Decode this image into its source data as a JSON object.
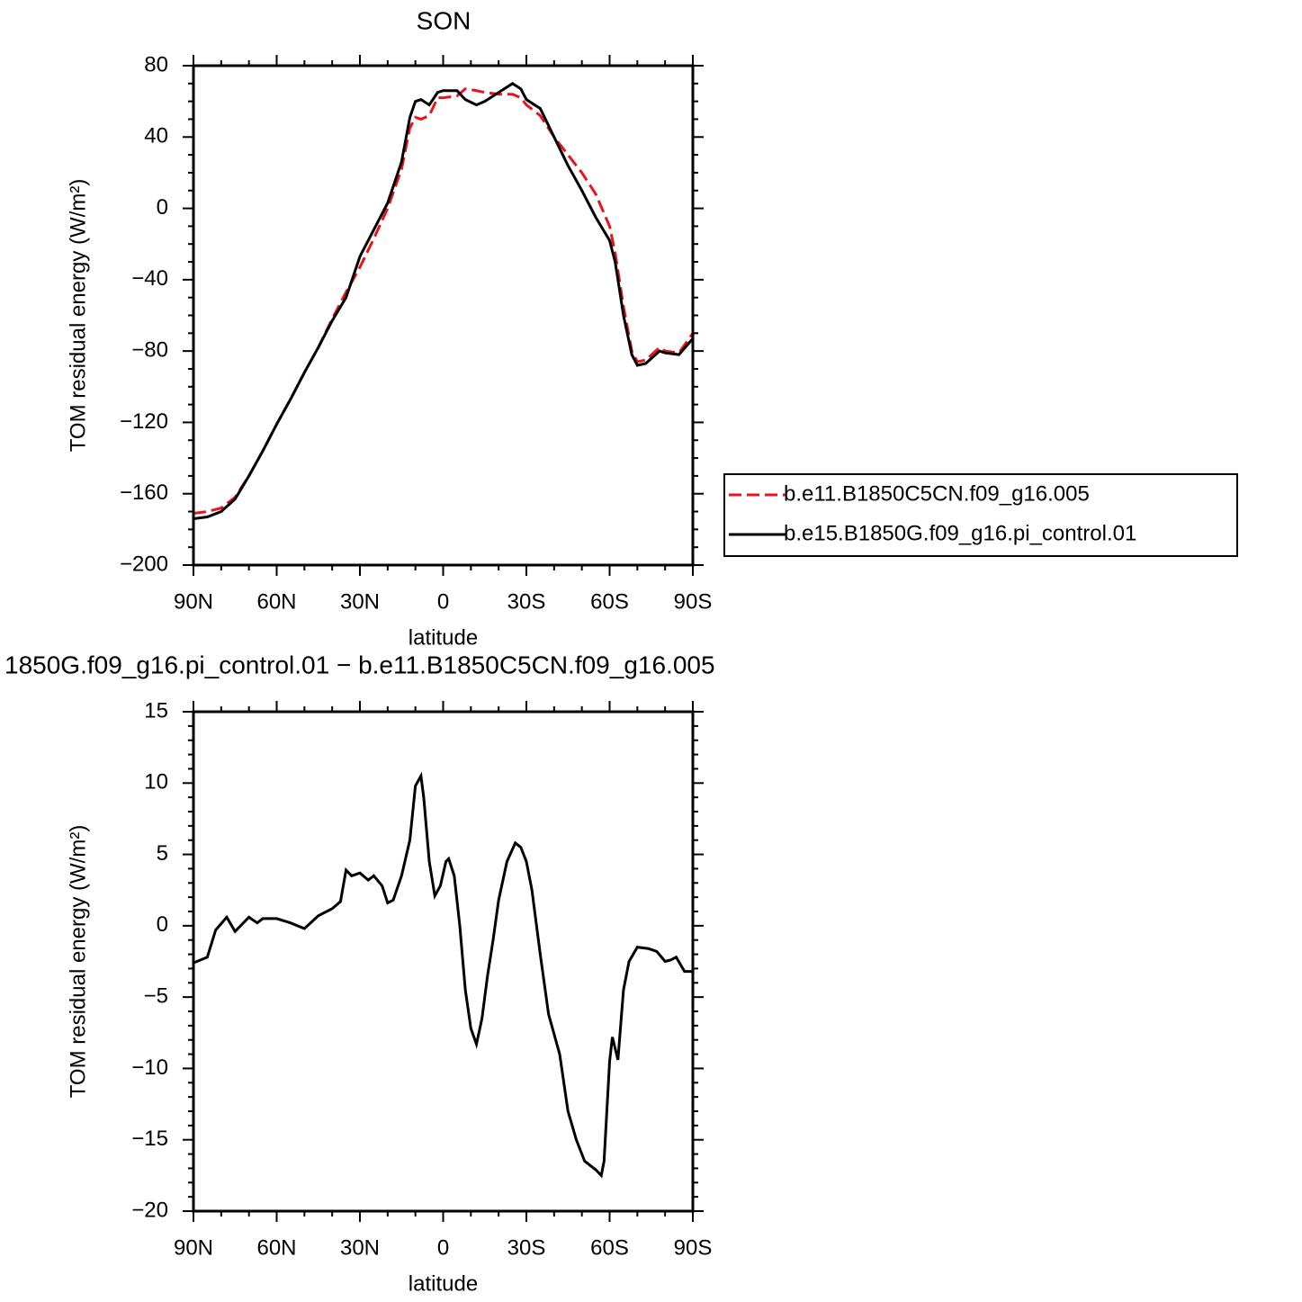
{
  "chart_data": [
    {
      "type": "line",
      "title": "SON",
      "x_label": "latitude",
      "y_label": "TOM residual energy (W/m²)",
      "x": [
        90,
        85,
        80,
        75,
        70,
        65,
        60,
        55,
        50,
        45,
        40,
        35,
        30,
        25,
        20,
        15,
        12,
        10,
        8,
        5,
        2,
        0,
        -5,
        -8,
        -12,
        -15,
        -20,
        -25,
        -28,
        -30,
        -35,
        -40,
        -45,
        -50,
        -55,
        -60,
        -62,
        -65,
        -68,
        -70,
        -73,
        -78,
        -80,
        -85,
        -90
      ],
      "xlim": [
        90,
        -90
      ],
      "xticks": [
        {
          "value": 90,
          "label": "90N"
        },
        {
          "value": 60,
          "label": "60N"
        },
        {
          "value": 30,
          "label": "30N"
        },
        0,
        {
          "value": -30,
          "label": "30S"
        },
        {
          "value": -60,
          "label": "60S"
        },
        {
          "value": -90,
          "label": "90S"
        }
      ],
      "xminorticks": [
        80,
        70,
        50,
        40,
        20,
        10,
        -10,
        -20,
        -40,
        -50,
        -70,
        -80
      ],
      "ylim": [
        -200,
        80
      ],
      "yticks": [
        {
          "value": -200,
          "label": "−200"
        },
        {
          "value": -160,
          "label": "−160"
        },
        {
          "value": -120,
          "label": "−120"
        },
        {
          "value": -80,
          "label": "−80"
        },
        {
          "value": -40,
          "label": "−40"
        },
        0,
        40,
        80
      ],
      "yminorticks": [
        -190,
        -180,
        -170,
        -150,
        -140,
        -130,
        -110,
        -100,
        -90,
        -70,
        -60,
        -50,
        -30,
        -20,
        -10,
        10,
        20,
        30,
        50,
        60,
        70
      ],
      "legend": "outside-right",
      "series": [
        {
          "name": "b.e11.B1850C5CN.f09_g16.005",
          "color": "#e8141c",
          "style": "dashed",
          "values": [
            -171,
            -170,
            -168,
            -162,
            -150,
            -136,
            -121,
            -107,
            -92,
            -78,
            -62,
            -47,
            -33,
            -17,
            0,
            22,
            45,
            51,
            50,
            52,
            62,
            62,
            63,
            67,
            66,
            65,
            64,
            64,
            62,
            58,
            52,
            40,
            30,
            20,
            8,
            -10,
            -25,
            -55,
            -80,
            -86,
            -85,
            -78,
            -80,
            -81,
            -70
          ]
        },
        {
          "name": "b.e15.B1850G.f09_g16.pi_control.01",
          "color": "#000000",
          "style": "solid",
          "values": [
            -174,
            -173,
            -170,
            -163,
            -150,
            -136,
            -121,
            -107,
            -92,
            -78,
            -63,
            -50,
            -27,
            -12,
            3,
            26,
            51,
            60,
            61,
            58,
            65,
            66,
            66,
            61,
            58,
            60,
            65,
            70,
            67,
            61,
            56,
            40,
            24,
            10,
            -5,
            -18,
            -30,
            -60,
            -82,
            -88,
            -87,
            -80,
            -81,
            -82,
            -73
          ]
        }
      ]
    },
    {
      "type": "line",
      "title": "1850G.f09_g16.pi_control.01 − b.e11.B1850C5CN.f09_g16.005",
      "x_label": "latitude",
      "y_label": "TOM residual energy (W/m²)",
      "x": [
        90,
        85,
        82,
        78,
        75,
        70,
        67,
        65,
        60,
        55,
        50,
        45,
        40,
        37,
        35,
        33,
        30,
        27,
        25,
        22,
        20,
        18,
        15,
        12,
        10,
        8,
        7,
        5,
        3,
        1,
        -1,
        -2,
        -4,
        -6,
        -8,
        -10,
        -12,
        -14,
        -16,
        -18,
        -20,
        -23,
        -26,
        -28,
        -30,
        -32,
        -35,
        -38,
        -42,
        -45,
        -48,
        -51,
        -55,
        -57,
        -58,
        -60,
        -61,
        -63,
        -65,
        -67,
        -70,
        -74,
        -77,
        -80,
        -82,
        -84,
        -87,
        -90
      ],
      "xlim": [
        90,
        -90
      ],
      "xticks": [
        {
          "value": 90,
          "label": "90N"
        },
        {
          "value": 60,
          "label": "60N"
        },
        {
          "value": 30,
          "label": "30N"
        },
        0,
        {
          "value": -30,
          "label": "30S"
        },
        {
          "value": -60,
          "label": "60S"
        },
        {
          "value": -90,
          "label": "90S"
        }
      ],
      "xminorticks": [
        80,
        70,
        50,
        40,
        20,
        10,
        -10,
        -20,
        -40,
        -50,
        -70,
        -80
      ],
      "ylim": [
        -20,
        15
      ],
      "yticks": [
        {
          "value": -20,
          "label": "−20"
        },
        {
          "value": -15,
          "label": "−15"
        },
        {
          "value": -10,
          "label": "−10"
        },
        {
          "value": -5,
          "label": "−5"
        },
        0,
        5,
        10,
        15
      ],
      "yminorticks": [
        -19,
        -18,
        -17,
        -16,
        -14,
        -13,
        -12,
        -11,
        -9,
        -8,
        -7,
        -6,
        -4,
        -3,
        -2,
        -1,
        1,
        2,
        3,
        4,
        6,
        7,
        8,
        9,
        11,
        12,
        13,
        14
      ],
      "color": "#000000",
      "values": [
        -2.6,
        -2.2,
        -0.3,
        0.6,
        -0.4,
        0.6,
        0.2,
        0.5,
        0.5,
        0.2,
        -0.2,
        0.7,
        1.2,
        1.7,
        3.9,
        3.5,
        3.7,
        3.2,
        3.5,
        2.8,
        1.6,
        1.8,
        3.5,
        6,
        9.8,
        10.5,
        9,
        4.5,
        2.1,
        2.8,
        4.5,
        4.7,
        3.5,
        0,
        -4.5,
        -7.2,
        -8.3,
        -6.5,
        -3.5,
        -1,
        1.8,
        4.5,
        5.8,
        5.5,
        4.5,
        2.5,
        -2,
        -6.2,
        -9,
        -13,
        -15,
        -16.5,
        -17.1,
        -17.5,
        -16.5,
        -9.5,
        -7.8,
        -9.4,
        -4.5,
        -2.5,
        -1.5,
        -1.6,
        -1.8,
        -2.5,
        -2.4,
        -2.2,
        -3.2,
        -3.2
      ]
    }
  ]
}
